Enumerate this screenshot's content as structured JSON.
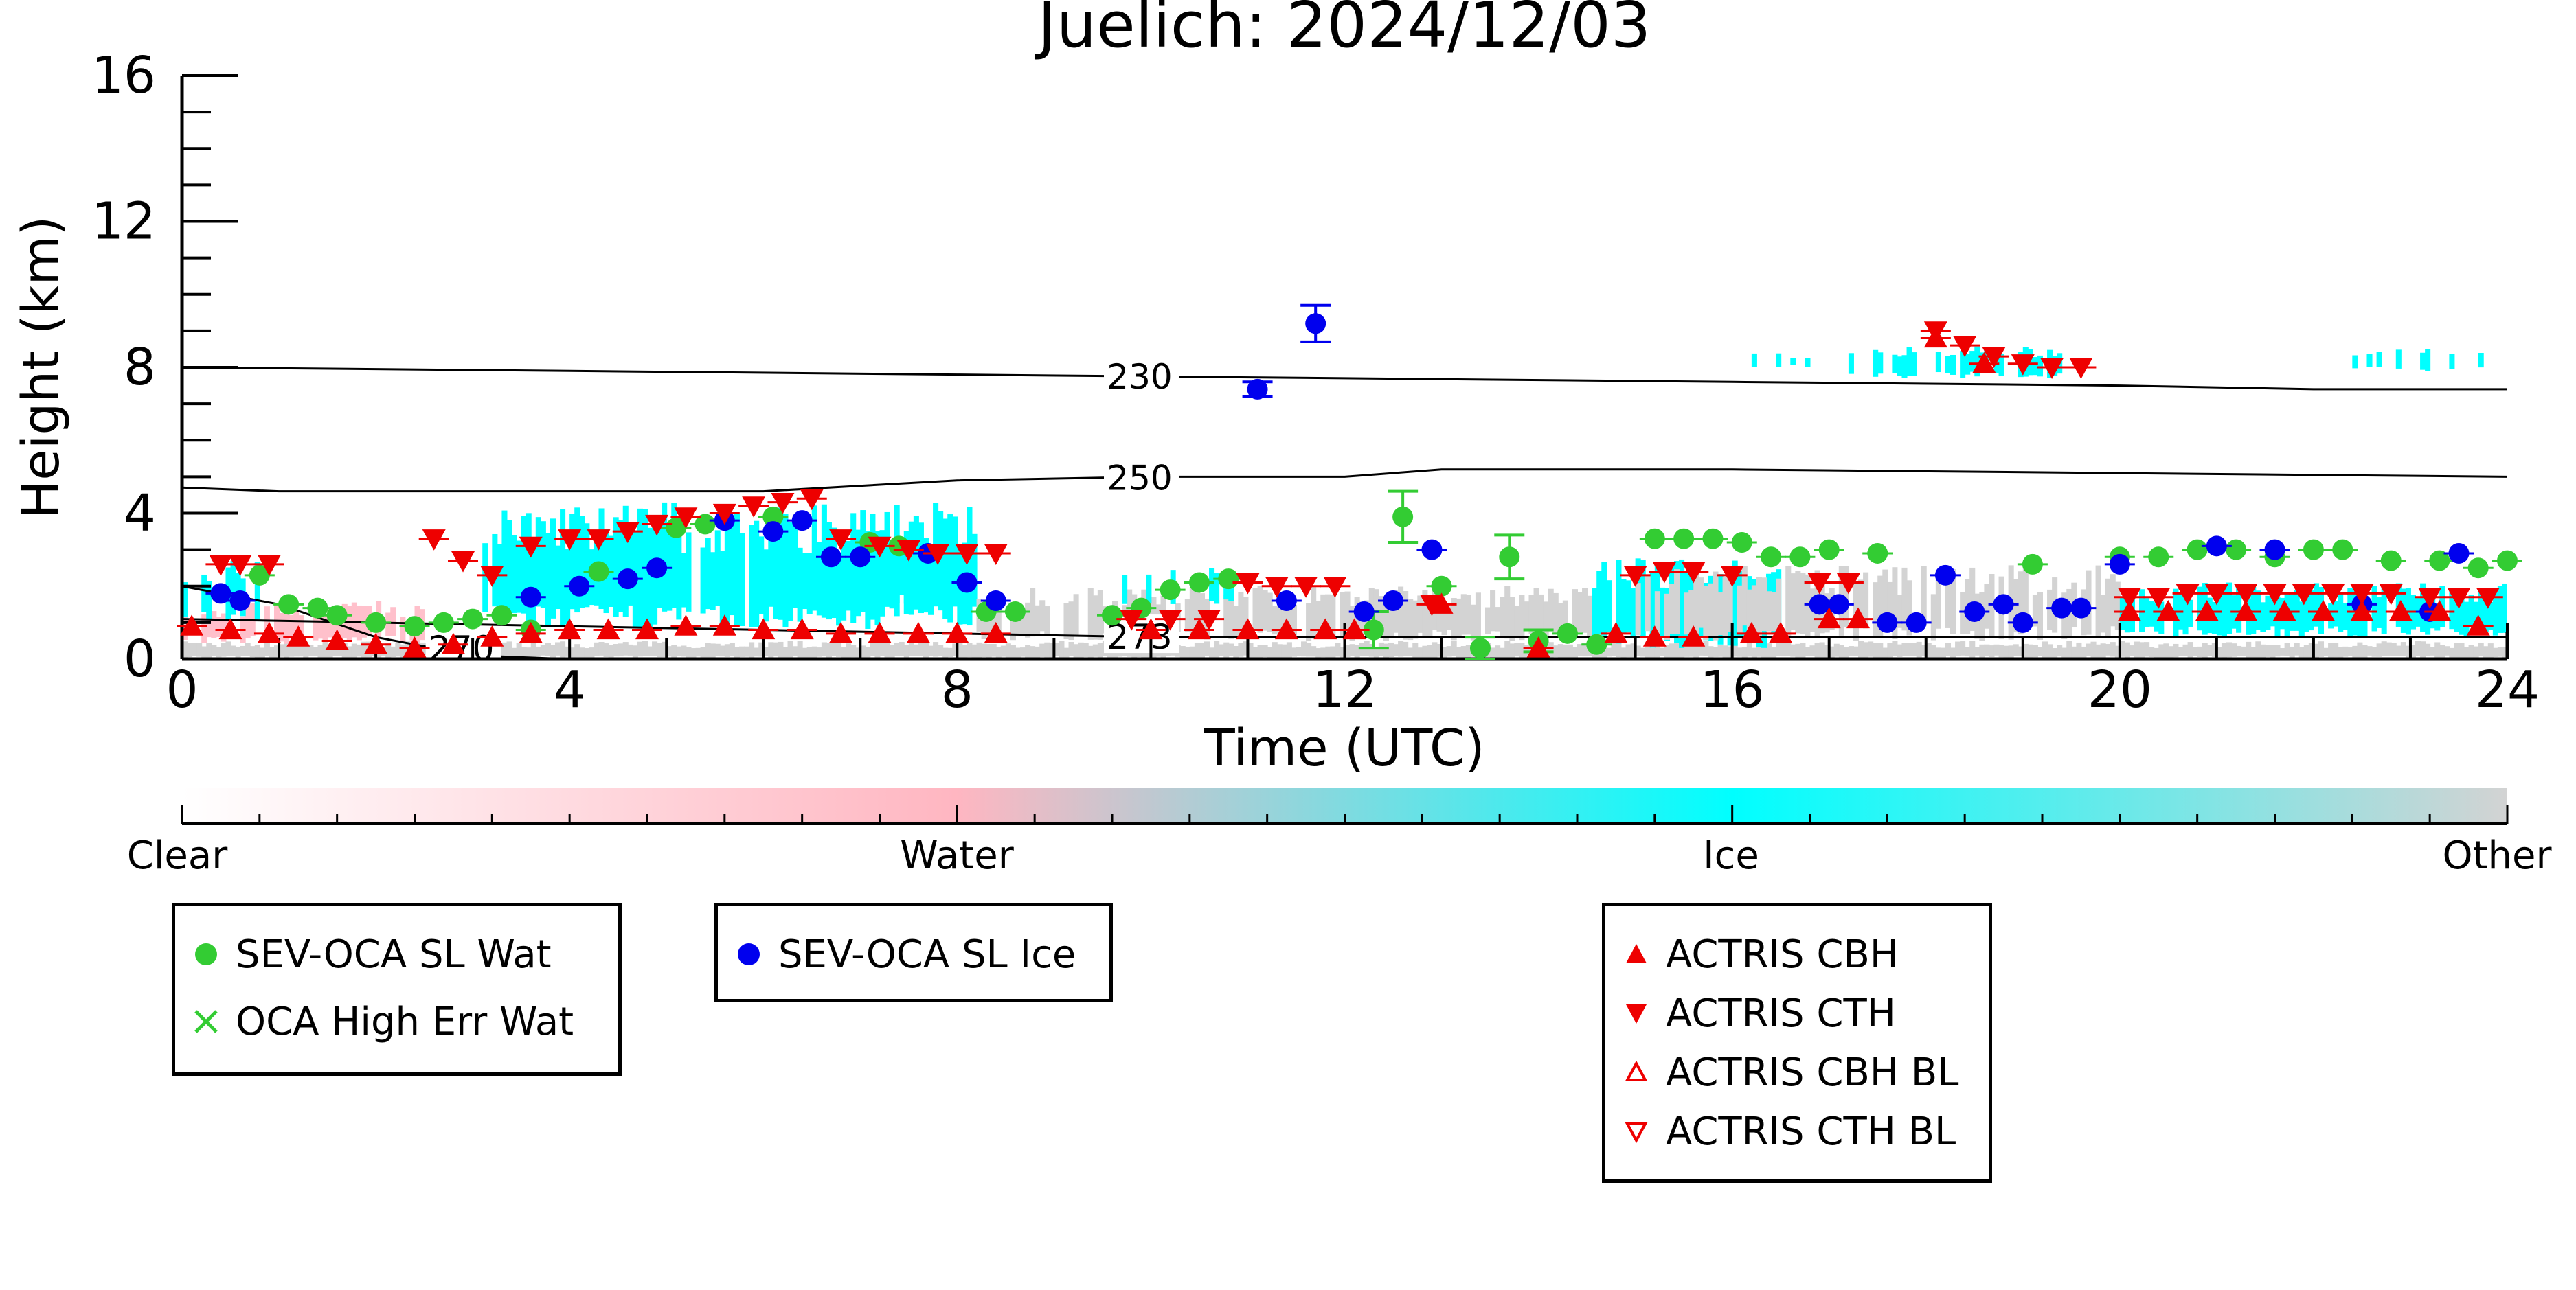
{
  "chart_data": {
    "type": "scatter",
    "title": "Juelich: 2024/12/03",
    "xlabel": "Time (UTC)",
    "ylabel": "Height (km)",
    "xlim": [
      0,
      24
    ],
    "ylim": [
      0,
      16
    ],
    "x_ticks": [
      "0",
      "4",
      "8",
      "12",
      "16",
      "20",
      "24"
    ],
    "y_ticks": [
      "0",
      "4",
      "8",
      "12",
      "16"
    ],
    "grid": false,
    "background": "cloud classification (Clear, Water, Ice, Other) from ground-based cloud profiling, time 0–24 UTC",
    "contours": [
      {
        "label": "230",
        "label_x": 9.6,
        "x": [
          0,
          4,
          8,
          12,
          16,
          20,
          22,
          24
        ],
        "y": [
          8.0,
          7.9,
          7.8,
          7.7,
          7.6,
          7.5,
          7.4,
          7.4
        ]
      },
      {
        "label": "250",
        "label_x": 9.6,
        "x": [
          0,
          1,
          4,
          6,
          8,
          10,
          11,
          12,
          13,
          16,
          20,
          24
        ],
        "y": [
          4.7,
          4.6,
          4.6,
          4.6,
          4.9,
          5.0,
          5.0,
          5.0,
          5.2,
          5.2,
          5.1,
          5.0
        ]
      },
      {
        "label": "273",
        "label_x": 9.6,
        "x": [
          0,
          2,
          4,
          6,
          8,
          10,
          12,
          16,
          20,
          24
        ],
        "y": [
          1.1,
          1.0,
          0.9,
          0.8,
          0.7,
          0.6,
          0.6,
          0.6,
          0.6,
          0.6
        ]
      },
      {
        "label": "270",
        "label_x": 2.6,
        "x": [
          0,
          1,
          2,
          3,
          4
        ],
        "y": [
          2.0,
          1.5,
          0.6,
          0.1,
          0.0
        ]
      }
    ],
    "colorbar": {
      "labels": [
        "Clear",
        "Water",
        "Ice",
        "Other"
      ],
      "colors": [
        "#ffffff",
        "#ffb6c1",
        "#00ffff",
        "#d3d3d3"
      ]
    },
    "series": [
      {
        "name": "SEV-OCA SL Wat",
        "marker": "circle",
        "color": "#33cc33",
        "x": [
          0.8,
          1.1,
          1.4,
          1.6,
          2.0,
          2.4,
          2.7,
          3.0,
          3.3,
          3.6,
          4.3,
          5.1,
          5.4,
          6.1,
          7.1,
          7.4,
          8.3,
          8.6,
          9.6,
          9.9,
          10.2,
          10.5,
          10.8,
          12.3,
          12.6,
          13.0,
          13.4,
          13.7,
          14.0,
          14.3,
          14.6,
          15.2,
          15.5,
          15.8,
          16.1,
          16.4,
          16.7,
          17.0,
          17.5,
          19.1,
          20.0,
          20.4,
          20.8,
          21.2,
          21.6,
          22.0,
          22.3,
          22.8,
          23.3,
          23.7,
          24.0
        ],
        "y": [
          2.3,
          1.5,
          1.4,
          1.2,
          1.0,
          0.9,
          1.0,
          1.1,
          1.2,
          0.8,
          2.4,
          3.6,
          3.7,
          3.9,
          3.2,
          3.1,
          1.3,
          1.3,
          1.2,
          1.4,
          1.9,
          2.1,
          2.2,
          0.8,
          3.9,
          2.0,
          0.3,
          2.8,
          0.5,
          0.7,
          0.4,
          3.3,
          3.3,
          3.3,
          3.2,
          2.8,
          2.8,
          3.0,
          2.9,
          2.6,
          2.8,
          2.8,
          3.0,
          3.0,
          2.8,
          3.0,
          3.0,
          2.7,
          2.7,
          2.5,
          2.7
        ],
        "err": [
          0,
          0,
          0,
          0,
          0,
          0,
          0,
          0,
          0,
          0,
          0,
          0,
          0,
          0,
          0,
          0,
          0,
          0,
          0,
          0,
          0,
          0,
          0,
          0.5,
          0.7,
          0,
          0.3,
          0.6,
          0.3,
          0,
          0,
          0,
          0,
          0,
          0,
          0,
          0,
          0,
          0,
          0,
          0,
          0,
          0,
          0,
          0,
          0,
          0,
          0,
          0,
          0,
          0
        ]
      },
      {
        "name": "OCA High Err Wat",
        "marker": "x",
        "color": "#33cc33",
        "x": [],
        "y": []
      },
      {
        "name": "SEV-OCA SL Ice",
        "marker": "circle",
        "color": "#0000ee",
        "x": [
          0.4,
          0.6,
          3.6,
          4.1,
          4.6,
          4.9,
          5.6,
          6.1,
          6.4,
          6.7,
          7.0,
          7.7,
          8.1,
          8.4,
          11.1,
          11.4,
          11.7,
          12.2,
          12.5,
          12.9,
          16.9,
          17.1,
          17.6,
          17.9,
          18.2,
          18.5,
          18.8,
          19.0,
          19.4,
          19.6,
          20.0,
          21.0,
          21.6,
          22.5,
          23.2,
          23.5
        ],
        "y": [
          1.8,
          1.6,
          1.7,
          2.0,
          2.2,
          2.5,
          3.8,
          3.5,
          3.8,
          2.8,
          2.8,
          2.9,
          2.1,
          1.6,
          7.4,
          1.6,
          9.2,
          1.3,
          1.6,
          3.0,
          1.5,
          1.5,
          1.0,
          1.0,
          2.3,
          1.3,
          1.5,
          1.0,
          1.4,
          1.4,
          2.6,
          3.1,
          3.0,
          1.5,
          1.3,
          2.9
        ],
        "err": [
          0,
          0,
          0,
          0,
          0,
          0,
          0,
          0,
          0,
          0,
          0,
          0,
          0,
          0,
          0.2,
          0,
          0.5,
          0,
          0,
          0,
          0,
          0,
          0,
          0,
          0,
          0,
          0,
          0,
          0,
          0,
          0,
          0,
          0,
          0,
          0,
          0
        ]
      },
      {
        "name": "ACTRIS CBH",
        "marker": "triangle-up",
        "color": "#ee0000",
        "x": [
          0.1,
          0.5,
          0.9,
          1.2,
          1.6,
          2.0,
          2.4,
          2.8,
          3.2,
          3.6,
          4.0,
          4.4,
          4.8,
          5.2,
          5.6,
          6.0,
          6.4,
          6.8,
          7.2,
          7.6,
          8.0,
          8.4,
          10.0,
          10.5,
          11.0,
          11.4,
          11.8,
          12.1,
          13.0,
          14.0,
          14.8,
          15.2,
          15.6,
          16.2,
          16.5,
          17.0,
          17.3,
          18.1,
          18.6,
          20.1,
          20.5,
          20.9,
          21.3,
          21.7,
          22.1,
          22.5,
          22.9,
          23.3,
          23.7
        ],
        "y": [
          0.9,
          0.8,
          0.7,
          0.6,
          0.5,
          0.4,
          0.3,
          0.4,
          0.6,
          0.7,
          0.8,
          0.8,
          0.8,
          0.9,
          0.9,
          0.8,
          0.8,
          0.7,
          0.7,
          0.7,
          0.7,
          0.7,
          0.8,
          0.8,
          0.8,
          0.8,
          0.8,
          0.8,
          1.5,
          0.3,
          0.7,
          0.6,
          0.6,
          0.7,
          0.7,
          1.1,
          1.1,
          8.8,
          8.1,
          1.3,
          1.3,
          1.3,
          1.3,
          1.3,
          1.3,
          1.3,
          1.3,
          1.3,
          0.9
        ]
      },
      {
        "name": "ACTRIS CTH",
        "marker": "triangle-down",
        "color": "#ee0000",
        "x": [
          0.4,
          0.6,
          0.9,
          2.6,
          2.9,
          3.2,
          3.6,
          4.0,
          4.3,
          4.6,
          4.9,
          5.2,
          5.6,
          5.9,
          6.2,
          6.5,
          6.8,
          7.2,
          7.5,
          7.8,
          8.1,
          8.4,
          9.8,
          10.2,
          10.6,
          11.0,
          11.3,
          11.6,
          11.9,
          12.9,
          15.0,
          15.3,
          15.6,
          16.0,
          16.9,
          17.2,
          18.1,
          18.4,
          18.7,
          19.0,
          19.3,
          19.6,
          20.1,
          20.4,
          20.7,
          21.0,
          21.3,
          21.6,
          21.9,
          22.2,
          22.5,
          22.8,
          23.2,
          23.5,
          23.8
        ],
        "y": [
          2.6,
          2.6,
          2.6,
          3.3,
          2.7,
          2.3,
          3.1,
          3.3,
          3.3,
          3.5,
          3.7,
          3.9,
          4.0,
          4.2,
          4.3,
          4.4,
          3.3,
          3.1,
          3.0,
          2.9,
          2.9,
          2.9,
          1.1,
          1.1,
          1.1,
          2.1,
          2.0,
          2.0,
          2.0,
          1.5,
          2.3,
          2.4,
          2.4,
          2.3,
          2.1,
          2.1,
          9.0,
          8.6,
          8.3,
          8.1,
          8.0,
          8.0,
          1.7,
          1.7,
          1.8,
          1.8,
          1.8,
          1.8,
          1.8,
          1.8,
          1.8,
          1.8,
          1.7,
          1.7,
          1.7
        ]
      },
      {
        "name": "ACTRIS CBH BL",
        "marker": "triangle-up-open",
        "color": "#ee0000",
        "x": [],
        "y": []
      },
      {
        "name": "ACTRIS CTH BL",
        "marker": "triangle-down-open",
        "color": "#ee0000",
        "x": [],
        "y": []
      }
    ]
  }
}
